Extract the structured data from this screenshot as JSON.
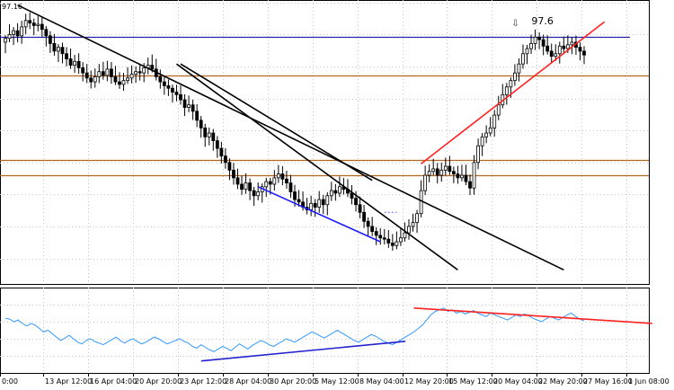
{
  "chart_data": [
    {
      "type": "candlestick",
      "title": "",
      "price_readout": "97.16",
      "annotation": {
        "text": "97.6",
        "marker_glyph": "⇩",
        "price": 98.15
      },
      "y_range": [
        78.0,
        100.2
      ],
      "x_tick_labels": [
        "0:00",
        "13 Apr 12:00",
        "16 Apr 04:00",
        "20 Apr 20:00",
        "23 Apr 12:00",
        "28 Apr 04:00",
        "30 Apr 20:00",
        "5 May 12:00",
        "8 May 04:00",
        "12 May 20:00",
        "15 May 12:00",
        "20 May 04:00",
        "22 May 20:00",
        "27 May 16:00",
        "1 Jun 08:00"
      ],
      "closes": [
        97.2,
        97.5,
        97.8,
        97.4,
        98.1,
        98.6,
        98.4,
        98.2,
        98.3,
        97.9,
        97.4,
        96.8,
        96.2,
        96.5,
        96.0,
        95.6,
        95.1,
        95.4,
        94.9,
        94.5,
        94.1,
        93.8,
        94.2,
        94.6,
        94.3,
        94.8,
        94.2,
        93.8,
        93.6,
        93.9,
        94.1,
        94.4,
        94.6,
        94.5,
        94.9,
        95.1,
        94.8,
        94.2,
        93.8,
        93.5,
        93.3,
        93.0,
        92.8,
        92.4,
        91.8,
        92.0,
        91.5,
        90.8,
        90.2,
        89.5,
        89.8,
        89.2,
        88.6,
        88.0,
        87.5,
        86.9,
        86.3,
        85.8,
        85.4,
        85.9,
        85.3,
        84.9,
        85.2,
        85.6,
        86.0,
        85.8,
        86.3,
        86.6,
        86.2,
        85.9,
        85.2,
        84.6,
        84.4,
        84.0,
        83.8,
        84.3,
        84.0,
        84.6,
        84.2,
        84.9,
        85.3,
        85.1,
        85.6,
        85.4,
        85.1,
        84.7,
        84.2,
        83.6,
        82.9,
        82.5,
        82.1,
        81.8,
        81.6,
        81.5,
        81.2,
        81.0,
        81.3,
        81.6,
        82.0,
        82.5,
        82.8,
        83.5,
        85.3,
        86.5,
        86.8,
        87.0,
        86.5,
        86.9,
        87.2,
        86.8,
        86.6,
        86.3,
        86.5,
        86.0,
        85.5,
        87.5,
        88.8,
        89.5,
        89.8,
        90.2,
        91.2,
        92.0,
        92.8,
        93.4,
        93.9,
        94.5,
        95.2,
        96.0,
        96.4,
        96.8,
        97.3,
        97.1,
        96.6,
        96.2,
        95.8,
        96.0,
        96.6,
        96.4,
        96.7,
        96.9,
        96.5,
        96.2,
        95.9
      ],
      "lines": [
        {
          "name": "",
          "color": "#000000",
          "from": [
            3,
            99.8
          ],
          "to": [
            137,
            79.1
          ]
        },
        {
          "name": "",
          "color": "#000000",
          "from": [
            42,
            95.2
          ],
          "to": [
            111,
            79.1
          ]
        },
        {
          "name": "",
          "color": "#000000",
          "from": [
            43,
            95.2
          ],
          "to": [
            90,
            86.1
          ]
        },
        {
          "name": "",
          "color": "#1a1aff",
          "from": [
            62,
            85.6
          ],
          "to": [
            92,
            81.3
          ]
        },
        {
          "name": "",
          "color": "#ff2020",
          "from": [
            102,
            87.4
          ],
          "to": [
            147,
            98.5
          ]
        }
      ],
      "horizontal_levels": [
        {
          "price": 97.3,
          "color": "#2222aa"
        },
        {
          "price": 94.3,
          "color": "#b5651d"
        },
        {
          "price": 87.7,
          "color": "#b5651d"
        },
        {
          "price": 86.5,
          "color": "#b5651d"
        }
      ]
    },
    {
      "type": "line",
      "title": "",
      "y_range": [
        0,
        100
      ],
      "series": [
        {
          "name": "",
          "color": "#3399ff",
          "values": [
            64,
            63,
            60,
            62,
            58,
            55,
            58,
            56,
            52,
            48,
            50,
            46,
            42,
            38,
            41,
            44,
            40,
            36,
            34,
            38,
            40,
            37,
            35,
            33,
            36,
            39,
            42,
            38,
            35,
            38,
            40,
            37,
            34,
            36,
            39,
            42,
            40,
            37,
            34,
            36,
            38,
            40,
            37,
            35,
            31,
            29,
            33,
            30,
            27,
            25,
            28,
            31,
            29,
            26,
            30,
            34,
            31,
            28,
            32,
            35,
            38,
            36,
            33,
            31,
            34,
            37,
            40,
            38,
            36,
            39,
            42,
            45,
            48,
            46,
            43,
            41,
            44,
            47,
            50,
            47,
            44,
            41,
            38,
            36,
            39,
            42,
            45,
            43,
            40,
            37,
            35,
            33,
            36,
            39,
            42,
            45,
            48,
            52,
            56,
            62,
            68,
            72,
            74,
            76,
            72,
            74,
            70,
            72,
            69,
            71,
            73,
            70,
            68,
            66,
            70,
            68,
            66,
            64,
            62,
            65,
            68,
            66,
            69,
            67,
            64,
            62,
            60,
            63,
            66,
            64,
            62,
            65,
            68,
            70,
            66,
            63,
            61
          ]
        }
      ],
      "lines": [
        {
          "name": "",
          "color": "#2222cc",
          "from": [
            46,
            14
          ],
          "to": [
            94,
            37
          ]
        },
        {
          "name": "",
          "color": "#ff2020",
          "from": [
            96,
            76
          ],
          "to": [
            152,
            58
          ]
        }
      ]
    }
  ]
}
